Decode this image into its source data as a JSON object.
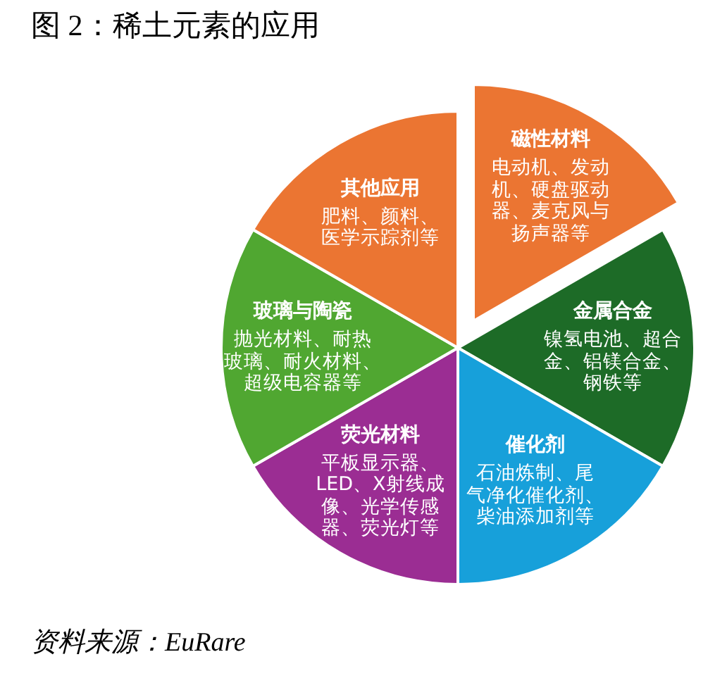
{
  "chart_data": {
    "type": "pie",
    "title": "图 2：稀土元素的应用",
    "categories": [
      "磁性材料",
      "金属合金",
      "催化剂",
      "荧光材料",
      "玻璃与陶瓷",
      "其他应用"
    ],
    "values": [
      16.67,
      16.67,
      16.67,
      16.67,
      16.67,
      16.67
    ],
    "colors": [
      "#eb7532",
      "#1d6b27",
      "#17a0da",
      "#9b2d93",
      "#50a731",
      "#eb7532"
    ],
    "annotations": [
      {
        "text": "电动机、发动机、硬盘驱动器、麦克风与扬声器等",
        "x": "磁性材料"
      },
      {
        "text": "镍氢电池、超合金、铝镁合金、钢铁等",
        "x": "金属合金"
      },
      {
        "text": "石油炼制、尾气净化催化剂、柴油添加剂等",
        "x": "催化剂"
      },
      {
        "text": "平板显示器、LED、X射线成像、光学传感器、荧光灯等",
        "x": "荧光材料"
      },
      {
        "text": "抛光材料、耐热玻璃、耐火材料、超级电容器等",
        "x": "玻璃与陶瓷"
      },
      {
        "text": "肥料、颜料、医学示踪剂等",
        "x": "其他应用"
      },
      "资料来源：EuRare"
    ],
    "legend": false
  }
}
